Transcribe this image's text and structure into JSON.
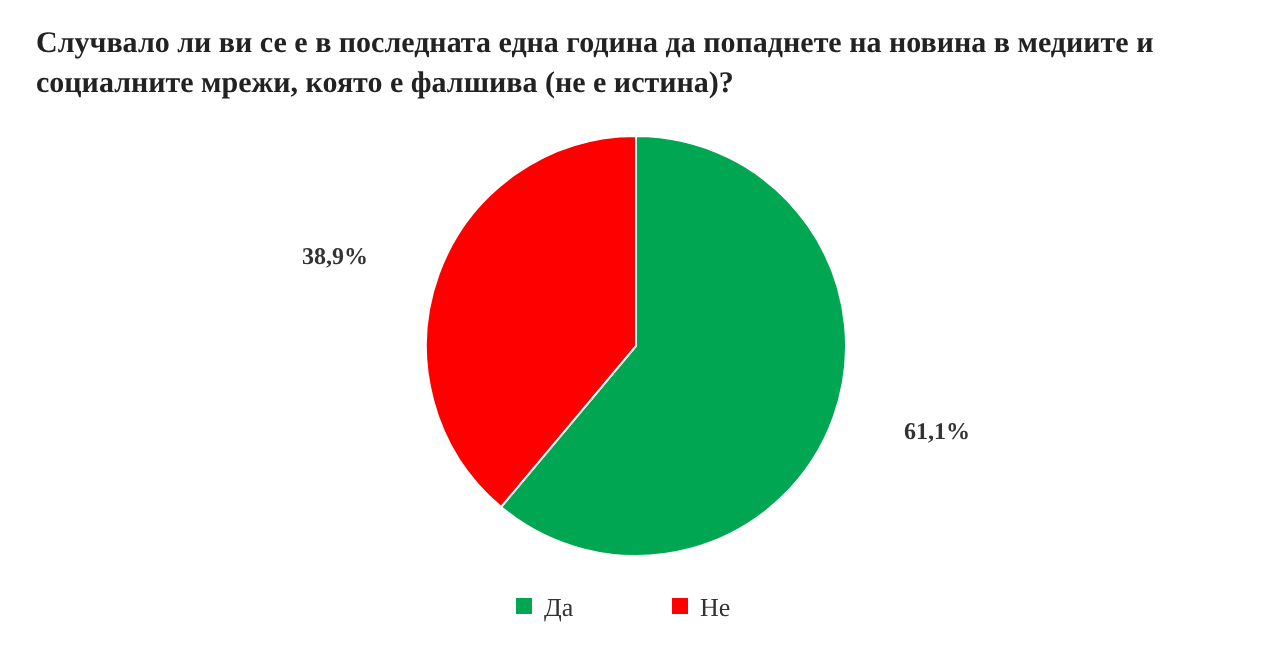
{
  "chart_data": {
    "type": "pie",
    "title": "Случвало ли ви се е в последната една година да попаднете на новина в медиите и социалните мрежи, която е фалшива (не е истина)?",
    "categories": [
      "Да",
      "Не"
    ],
    "values": [
      61.1,
      38.9
    ],
    "colors": [
      "#00a651",
      "#ff0000"
    ],
    "value_labels": [
      "61,1%",
      "38,9%"
    ],
    "legend": "bottom"
  }
}
